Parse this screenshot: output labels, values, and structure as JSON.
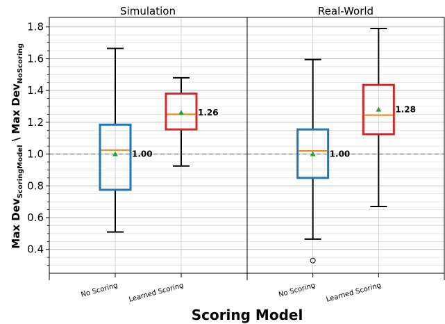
{
  "chart_data": {
    "type": "box",
    "xlabel": "Scoring Model",
    "ylabel": {
      "prefix": "Max Dev",
      "sub1": "ScoringModel",
      "sep": " \\ ",
      "prefix2": "Max Dev",
      "sub2": "NoScoring"
    },
    "ylim": [
      0.25,
      1.86
    ],
    "yticks": [
      0.4,
      0.6,
      0.8,
      1.0,
      1.2,
      1.4,
      1.6,
      1.8
    ],
    "ytick_labels": [
      "0.4",
      "0.6",
      "0.8",
      "1.0",
      "1.2",
      "1.4",
      "1.6",
      "1.8"
    ],
    "reference_line": 1.0,
    "grid": true,
    "panels": [
      {
        "title": "Simulation",
        "boxes": [
          {
            "category": "No Scoring",
            "whisker_low": 0.51,
            "q1": 0.775,
            "median": 1.025,
            "q3": 1.185,
            "whisker_high": 1.665,
            "mean": 1.0,
            "mean_label": "1.00",
            "color": "#1f77b4",
            "outliers": []
          },
          {
            "category": "Learned Scoring",
            "whisker_low": 0.925,
            "q1": 1.155,
            "median": 1.25,
            "q3": 1.38,
            "whisker_high": 1.48,
            "mean": 1.26,
            "mean_label": "1.26",
            "color": "#d62728",
            "outliers": []
          }
        ]
      },
      {
        "title": "Real-World",
        "boxes": [
          {
            "category": "No Scoring",
            "whisker_low": 0.465,
            "q1": 0.85,
            "median": 1.02,
            "q3": 1.155,
            "whisker_high": 1.595,
            "mean": 1.0,
            "mean_label": "1.00",
            "color": "#1f77b4",
            "outliers": [
              0.33
            ]
          },
          {
            "category": "Learned Scoring",
            "whisker_low": 0.67,
            "q1": 1.125,
            "median": 1.245,
            "q3": 1.435,
            "whisker_high": 1.79,
            "mean": 1.28,
            "mean_label": "1.28",
            "color": "#d62728",
            "outliers": []
          }
        ]
      }
    ],
    "median_color": "#ff7f0e",
    "mean_marker_color": "#2ca02c"
  }
}
